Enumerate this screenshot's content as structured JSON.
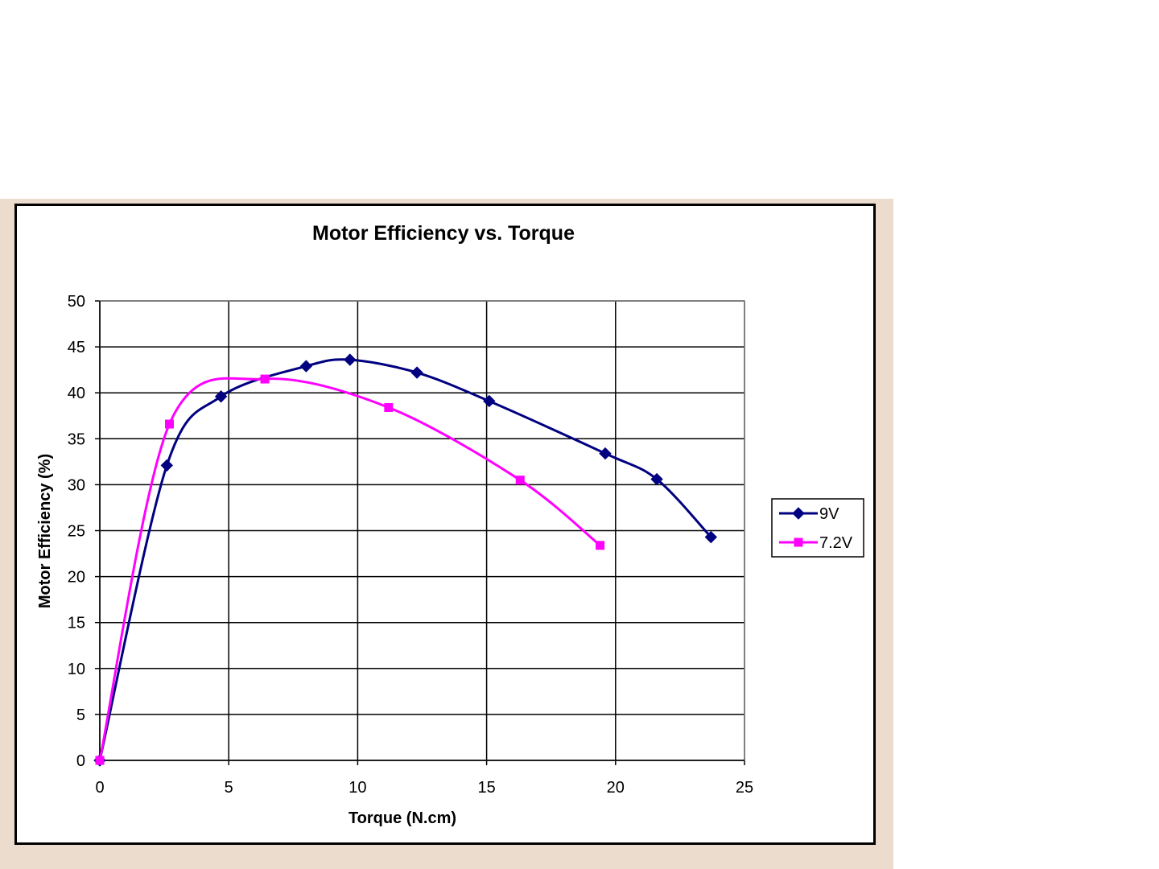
{
  "chart_data": {
    "type": "line",
    "title": "Motor Efficiency vs. Torque",
    "xlabel": "Torque (N.cm)",
    "ylabel": "Motor Efficiency (%)",
    "xlim": [
      0,
      25
    ],
    "ylim": [
      0,
      50
    ],
    "xticks": [
      0,
      5,
      10,
      15,
      20,
      25
    ],
    "yticks": [
      0,
      5,
      10,
      15,
      20,
      25,
      30,
      35,
      40,
      45,
      50
    ],
    "grid": true,
    "legend_position": "right",
    "series": [
      {
        "name": "9V",
        "color": "#000080",
        "marker": "diamond",
        "x": [
          0,
          2.6,
          4.7,
          8.0,
          9.7,
          12.3,
          15.1,
          19.6,
          21.6,
          23.7
        ],
        "y": [
          0,
          32.1,
          39.6,
          42.9,
          43.6,
          42.2,
          39.1,
          33.4,
          30.6,
          24.3
        ]
      },
      {
        "name": "7.2V",
        "color": "#ff00ff",
        "marker": "square",
        "x": [
          0,
          2.7,
          6.4,
          11.2,
          16.3,
          19.4
        ],
        "y": [
          0,
          36.6,
          41.5,
          38.4,
          30.5,
          23.4
        ]
      }
    ]
  }
}
